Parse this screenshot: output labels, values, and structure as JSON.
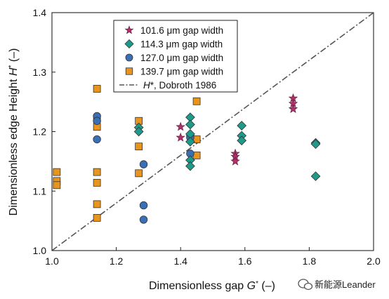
{
  "chart_data": {
    "type": "scatter",
    "title": "",
    "xlabel_text": "Dimensionless gap ",
    "xlabel_symbol": "G",
    "xlabel_unit": " (–)",
    "ylabel_text": "Dimensionless edge Height ",
    "ylabel_symbol": "H",
    "ylabel_unit": " (–)",
    "xlim": [
      1.0,
      2.0
    ],
    "ylim": [
      1.0,
      1.4
    ],
    "xticks": [
      "1.0",
      "1.2",
      "1.4",
      "1.6",
      "1.8",
      "2.0"
    ],
    "yticks": [
      "1.0",
      "1.1",
      "1.2",
      "1.3",
      "1.4"
    ],
    "grid": false,
    "legend_position": "top-center",
    "series": [
      {
        "name": "101.6 μm gap width",
        "marker": "star",
        "color": "#b0306a",
        "x": [
          1.4,
          1.4,
          1.57,
          1.57,
          1.57,
          1.75,
          1.75,
          1.75
        ],
        "y": [
          1.208,
          1.19,
          1.163,
          1.158,
          1.15,
          1.256,
          1.247,
          1.238
        ]
      },
      {
        "name": "114.3 μm gap width",
        "marker": "diamond",
        "color": "#1e9a8a",
        "x": [
          1.27,
          1.27,
          1.43,
          1.43,
          1.43,
          1.43,
          1.43,
          1.43,
          1.59,
          1.59,
          1.59,
          1.82,
          1.82,
          1.82
        ],
        "y": [
          1.207,
          1.2,
          1.224,
          1.212,
          1.196,
          1.183,
          1.152,
          1.142,
          1.21,
          1.193,
          1.185,
          1.181,
          1.179,
          1.125
        ]
      },
      {
        "name": "127.0 μm gap width",
        "marker": "circle",
        "color": "#3b6fb5",
        "x": [
          1.14,
          1.14,
          1.14,
          1.285,
          1.285,
          1.285,
          1.43,
          1.43,
          1.43
        ],
        "y": [
          1.226,
          1.218,
          1.187,
          1.145,
          1.076,
          1.052,
          1.193,
          1.19,
          1.163
        ]
      },
      {
        "name": "139.7 μm gap width",
        "marker": "square",
        "color": "#e8951e",
        "x": [
          1.015,
          1.015,
          1.015,
          1.14,
          1.14,
          1.14,
          1.14,
          1.14,
          1.14,
          1.14,
          1.27,
          1.27,
          1.27,
          1.45,
          1.45,
          1.45
        ],
        "y": [
          1.132,
          1.117,
          1.11,
          1.272,
          1.222,
          1.208,
          1.132,
          1.114,
          1.078,
          1.055,
          1.218,
          1.175,
          1.13,
          1.251,
          1.187,
          1.16
        ]
      }
    ],
    "reference_line": {
      "name_symbol": "H",
      "name_rest": "*, Dobroth 1986",
      "style": "dash-dot",
      "color": "#555555",
      "x": [
        1.0,
        2.0
      ],
      "y": [
        1.0,
        1.4
      ]
    }
  },
  "watermark": {
    "icon": "wechat-icon",
    "text": "新能源Leander"
  }
}
